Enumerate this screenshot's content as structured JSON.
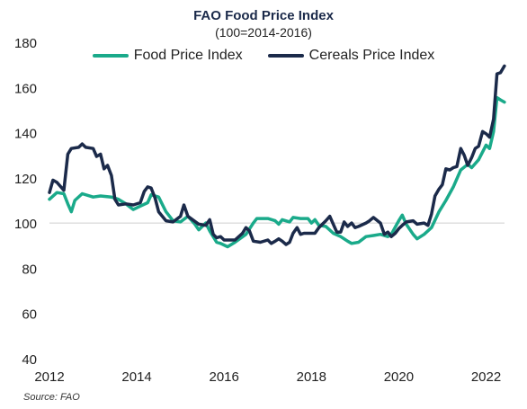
{
  "chart_data": {
    "type": "line",
    "title": "FAO Food Price Index",
    "subtitle": "(100=2014-2016)",
    "source": "Source: FAO",
    "xlim": [
      2012,
      2022.4
    ],
    "ylim": [
      40,
      180
    ],
    "x_ticks": [
      "2012",
      "2014",
      "2016",
      "2018",
      "2020",
      "2022"
    ],
    "y_ticks": [
      "40",
      "60",
      "80",
      "100",
      "120",
      "140",
      "160",
      "180"
    ],
    "reference_line": 100,
    "legend_position": "top",
    "series": [
      {
        "name": "Food Price Index",
        "color": "#1aaa8a",
        "points": [
          [
            2012.0,
            110.5
          ],
          [
            2012.17,
            113.5
          ],
          [
            2012.33,
            113
          ],
          [
            2012.42,
            108.5
          ],
          [
            2012.5,
            105
          ],
          [
            2012.58,
            110
          ],
          [
            2012.75,
            113
          ],
          [
            2013.0,
            111.5
          ],
          [
            2013.17,
            112
          ],
          [
            2013.42,
            111.5
          ],
          [
            2013.58,
            110.5
          ],
          [
            2013.75,
            108.5
          ],
          [
            2013.92,
            106
          ],
          [
            2014.08,
            107.5
          ],
          [
            2014.25,
            109
          ],
          [
            2014.33,
            112.5
          ],
          [
            2014.5,
            111.5
          ],
          [
            2014.67,
            105
          ],
          [
            2014.83,
            101
          ],
          [
            2015.0,
            100.5
          ],
          [
            2015.17,
            103
          ],
          [
            2015.33,
            99.5
          ],
          [
            2015.42,
            97
          ],
          [
            2015.58,
            100
          ],
          [
            2015.67,
            96.5
          ],
          [
            2015.83,
            91.5
          ],
          [
            2015.92,
            91
          ],
          [
            2016.08,
            89.5
          ],
          [
            2016.25,
            91.5
          ],
          [
            2016.5,
            95
          ],
          [
            2016.67,
            100
          ],
          [
            2016.75,
            102
          ],
          [
            2017.0,
            102
          ],
          [
            2017.17,
            101
          ],
          [
            2017.25,
            99.5
          ],
          [
            2017.33,
            101.5
          ],
          [
            2017.5,
            100.5
          ],
          [
            2017.58,
            102.5
          ],
          [
            2017.75,
            102
          ],
          [
            2017.92,
            102
          ],
          [
            2018.0,
            100
          ],
          [
            2018.08,
            101.5
          ],
          [
            2018.17,
            99
          ],
          [
            2018.33,
            98.5
          ],
          [
            2018.5,
            95.5
          ],
          [
            2018.67,
            94
          ],
          [
            2018.83,
            92
          ],
          [
            2018.92,
            91
          ],
          [
            2019.08,
            91.5
          ],
          [
            2019.25,
            94
          ],
          [
            2019.42,
            94.5
          ],
          [
            2019.58,
            95
          ],
          [
            2019.75,
            94
          ],
          [
            2019.83,
            95
          ],
          [
            2020.0,
            101
          ],
          [
            2020.08,
            103.5
          ],
          [
            2020.17,
            99.5
          ],
          [
            2020.33,
            95
          ],
          [
            2020.42,
            93
          ],
          [
            2020.58,
            95
          ],
          [
            2020.75,
            98
          ],
          [
            2020.92,
            105
          ],
          [
            2021.08,
            110
          ],
          [
            2021.25,
            116
          ],
          [
            2021.42,
            123.5
          ],
          [
            2021.58,
            126
          ],
          [
            2021.67,
            124.5
          ],
          [
            2021.83,
            128
          ],
          [
            2022.0,
            134.5
          ],
          [
            2022.08,
            133
          ],
          [
            2022.17,
            140.5
          ],
          [
            2022.25,
            155.5
          ],
          [
            2022.33,
            154.5
          ],
          [
            2022.42,
            153.5
          ]
        ]
      },
      {
        "name": "Cereals Price Index",
        "color": "#1b2a4a",
        "points": [
          [
            2012.0,
            113.5
          ],
          [
            2012.08,
            119
          ],
          [
            2012.17,
            118
          ],
          [
            2012.33,
            114.5
          ],
          [
            2012.42,
            130.5
          ],
          [
            2012.5,
            133
          ],
          [
            2012.67,
            133.5
          ],
          [
            2012.75,
            135
          ],
          [
            2012.83,
            133.5
          ],
          [
            2013.0,
            133
          ],
          [
            2013.08,
            129.5
          ],
          [
            2013.17,
            130.5
          ],
          [
            2013.25,
            124
          ],
          [
            2013.33,
            125.5
          ],
          [
            2013.42,
            121
          ],
          [
            2013.5,
            110.5
          ],
          [
            2013.58,
            108
          ],
          [
            2013.75,
            108.5
          ],
          [
            2013.92,
            108
          ],
          [
            2014.08,
            109
          ],
          [
            2014.17,
            114
          ],
          [
            2014.25,
            116
          ],
          [
            2014.33,
            115.5
          ],
          [
            2014.42,
            111
          ],
          [
            2014.5,
            105
          ],
          [
            2014.67,
            101
          ],
          [
            2014.83,
            100.5
          ],
          [
            2015.0,
            103
          ],
          [
            2015.08,
            108
          ],
          [
            2015.17,
            103
          ],
          [
            2015.42,
            99.5
          ],
          [
            2015.58,
            99
          ],
          [
            2015.67,
            101.5
          ],
          [
            2015.75,
            95
          ],
          [
            2015.83,
            93.5
          ],
          [
            2015.92,
            94
          ],
          [
            2016.0,
            92.5
          ],
          [
            2016.25,
            92.5
          ],
          [
            2016.42,
            95.5
          ],
          [
            2016.5,
            98
          ],
          [
            2016.58,
            96.5
          ],
          [
            2016.67,
            92
          ],
          [
            2016.83,
            91.5
          ],
          [
            2017.0,
            92.5
          ],
          [
            2017.08,
            91
          ],
          [
            2017.17,
            92
          ],
          [
            2017.25,
            93
          ],
          [
            2017.33,
            92
          ],
          [
            2017.42,
            90.5
          ],
          [
            2017.5,
            91.5
          ],
          [
            2017.58,
            95.5
          ],
          [
            2017.67,
            98
          ],
          [
            2017.75,
            95
          ],
          [
            2017.83,
            95.5
          ],
          [
            2018.0,
            95.5
          ],
          [
            2018.08,
            95.5
          ],
          [
            2018.17,
            98
          ],
          [
            2018.33,
            101
          ],
          [
            2018.42,
            103
          ],
          [
            2018.5,
            99.5
          ],
          [
            2018.58,
            96
          ],
          [
            2018.67,
            96
          ],
          [
            2018.75,
            100.5
          ],
          [
            2018.83,
            98.5
          ],
          [
            2018.92,
            100
          ],
          [
            2019.0,
            98
          ],
          [
            2019.08,
            98.5
          ],
          [
            2019.25,
            100
          ],
          [
            2019.33,
            101
          ],
          [
            2019.42,
            102.5
          ],
          [
            2019.58,
            100
          ],
          [
            2019.67,
            95
          ],
          [
            2019.75,
            96
          ],
          [
            2019.83,
            94
          ],
          [
            2019.92,
            95.5
          ],
          [
            2020.0,
            97.5
          ],
          [
            2020.08,
            99
          ],
          [
            2020.17,
            100.5
          ],
          [
            2020.33,
            101
          ],
          [
            2020.42,
            99.5
          ],
          [
            2020.58,
            100
          ],
          [
            2020.67,
            99
          ],
          [
            2020.75,
            104
          ],
          [
            2020.83,
            112
          ],
          [
            2020.92,
            115
          ],
          [
            2021.0,
            117
          ],
          [
            2021.08,
            124
          ],
          [
            2021.17,
            123.5
          ],
          [
            2021.25,
            124.5
          ],
          [
            2021.33,
            125
          ],
          [
            2021.42,
            133
          ],
          [
            2021.5,
            130
          ],
          [
            2021.58,
            125.5
          ],
          [
            2021.67,
            129
          ],
          [
            2021.75,
            133
          ],
          [
            2021.83,
            134
          ],
          [
            2021.92,
            140.5
          ],
          [
            2022.0,
            139.5
          ],
          [
            2022.08,
            138
          ],
          [
            2022.17,
            146
          ],
          [
            2022.25,
            166
          ],
          [
            2022.33,
            166.5
          ],
          [
            2022.42,
            169.5
          ]
        ]
      }
    ]
  }
}
